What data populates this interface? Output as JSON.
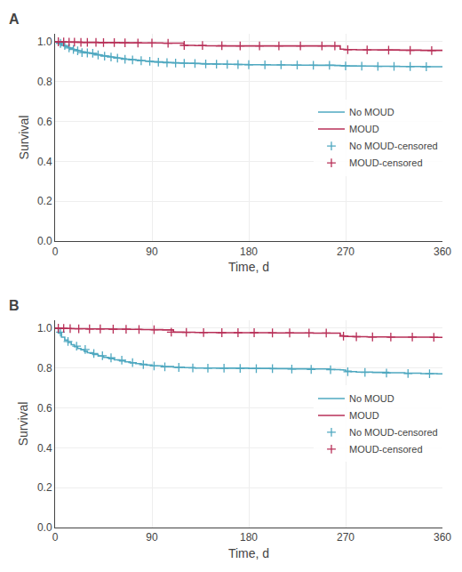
{
  "chart_data": [
    {
      "type": "line",
      "title": "A",
      "xlabel": "Time, d",
      "ylabel": "Survival",
      "xlim": [
        0,
        360
      ],
      "ylim": [
        0.0,
        1.04
      ],
      "xticks": [
        0,
        90,
        180,
        270,
        360
      ],
      "yticks": [
        {
          "value": 0.0,
          "label": "0.0"
        },
        0.2,
        0.4,
        0.6,
        0.8,
        {
          "value": 1.0,
          "label": "1.0"
        }
      ],
      "grid": true,
      "legend": "center right",
      "series": [
        {
          "name": "No MOUD",
          "color": "#4fa8c0",
          "type": "line",
          "line_style": "step",
          "x": [
            0,
            2,
            4,
            6,
            8,
            10,
            12,
            14,
            16,
            18,
            20,
            22,
            24,
            26,
            28,
            30,
            32,
            34,
            36,
            38,
            40,
            42,
            44,
            46,
            48,
            50,
            52,
            54,
            56,
            58,
            60,
            63,
            66,
            69,
            72,
            75,
            78,
            81,
            84,
            87,
            90,
            95,
            100,
            105,
            110,
            115,
            120,
            125,
            130,
            135,
            140,
            145,
            150,
            155,
            160,
            165,
            170,
            175,
            180,
            190,
            200,
            210,
            220,
            230,
            240,
            250,
            260,
            265,
            270,
            275,
            280,
            290,
            300,
            310,
            320,
            330,
            340,
            350,
            360
          ],
          "values": [
            1.0,
            0.994,
            0.989,
            0.984,
            0.979,
            0.975,
            0.971,
            0.967,
            0.963,
            0.96,
            0.957,
            0.954,
            0.951,
            0.949,
            0.947,
            0.945,
            0.943,
            0.941,
            0.939,
            0.937,
            0.935,
            0.933,
            0.931,
            0.929,
            0.928,
            0.926,
            0.924,
            0.922,
            0.921,
            0.919,
            0.917,
            0.915,
            0.913,
            0.911,
            0.91,
            0.908,
            0.906,
            0.905,
            0.903,
            0.902,
            0.9,
            0.899,
            0.897,
            0.896,
            0.895,
            0.894,
            0.893,
            0.892,
            0.891,
            0.89,
            0.889,
            0.889,
            0.888,
            0.888,
            0.887,
            0.887,
            0.886,
            0.886,
            0.885,
            0.885,
            0.884,
            0.884,
            0.883,
            0.883,
            0.882,
            0.882,
            0.881,
            0.88,
            0.879,
            0.879,
            0.878,
            0.878,
            0.877,
            0.877,
            0.876,
            0.876,
            0.875,
            0.875,
            0.874
          ]
        },
        {
          "name": "MOUD",
          "color": "#b83058",
          "type": "line",
          "line_style": "step",
          "x": [
            0,
            5,
            10,
            15,
            20,
            25,
            30,
            35,
            40,
            50,
            60,
            70,
            80,
            90,
            100,
            110,
            120,
            130,
            140,
            150,
            160,
            170,
            180,
            195,
            210,
            225,
            240,
            255,
            263,
            265,
            268,
            270,
            280,
            300,
            320,
            340,
            360
          ],
          "values": [
            1.0,
            0.9995,
            0.999,
            0.998,
            0.998,
            0.997,
            0.997,
            0.997,
            0.996,
            0.996,
            0.995,
            0.995,
            0.994,
            0.994,
            0.993,
            0.993,
            0.982,
            0.981,
            0.98,
            0.979,
            0.979,
            0.979,
            0.979,
            0.979,
            0.979,
            0.979,
            0.979,
            0.979,
            0.979,
            0.963,
            0.962,
            0.961,
            0.96,
            0.959,
            0.958,
            0.957,
            0.956
          ]
        },
        {
          "name": "No MOUD-censored",
          "color": "#4fa8c0",
          "type": "scatter",
          "marker": "plus",
          "x": [
            5,
            9,
            13,
            17,
            21,
            25,
            30,
            35,
            40,
            46,
            52,
            58,
            65,
            72,
            80,
            88,
            96,
            104,
            112,
            120,
            130,
            140,
            150,
            160,
            170,
            180,
            195,
            210,
            225,
            240,
            255,
            270,
            285,
            300,
            315,
            330,
            345
          ],
          "values": [
            0.992,
            0.981,
            0.969,
            0.961,
            0.955,
            0.946,
            0.944,
            0.942,
            0.934,
            0.928,
            0.923,
            0.918,
            0.912,
            0.909,
            0.905,
            0.902,
            0.898,
            0.895,
            0.893,
            0.892,
            0.891,
            0.889,
            0.888,
            0.887,
            0.886,
            0.885,
            0.884,
            0.884,
            0.883,
            0.882,
            0.882,
            0.879,
            0.878,
            0.877,
            0.877,
            0.876,
            0.875
          ]
        },
        {
          "name": "MOUD-censored",
          "color": "#b83058",
          "type": "scatter",
          "marker": "plus",
          "x": [
            3,
            8,
            13,
            18,
            24,
            30,
            38,
            45,
            55,
            65,
            77,
            90,
            105,
            120,
            137,
            155,
            172,
            190,
            208,
            228,
            248,
            260,
            272,
            290,
            310,
            330,
            350
          ],
          "values": [
            0.9998,
            0.9993,
            0.9985,
            0.9978,
            0.9972,
            0.997,
            0.997,
            0.996,
            0.996,
            0.995,
            0.994,
            0.994,
            0.993,
            0.982,
            0.981,
            0.98,
            0.979,
            0.979,
            0.979,
            0.979,
            0.979,
            0.979,
            0.96,
            0.959,
            0.958,
            0.957,
            0.956
          ]
        }
      ]
    },
    {
      "type": "line",
      "title": "B",
      "xlabel": "Time, d",
      "ylabel": "Survival",
      "xlim": [
        0,
        360
      ],
      "ylim": [
        0.0,
        1.04
      ],
      "xticks": [
        0,
        90,
        180,
        270,
        360
      ],
      "yticks": [
        {
          "value": 0.0,
          "label": "0.0"
        },
        0.2,
        0.4,
        0.6,
        0.8,
        {
          "value": 1.0,
          "label": "1.0"
        }
      ],
      "grid": true,
      "legend": "center right",
      "series": [
        {
          "name": "No MOUD",
          "color": "#4fa8c0",
          "type": "line",
          "line_style": "step",
          "x": [
            0,
            3,
            6,
            9,
            12,
            15,
            18,
            21,
            24,
            27,
            30,
            35,
            40,
            45,
            50,
            55,
            60,
            65,
            70,
            75,
            80,
            85,
            90,
            100,
            110,
            120,
            130,
            140,
            150,
            160,
            170,
            180,
            200,
            220,
            240,
            255,
            260,
            265,
            268,
            270,
            275,
            280,
            295,
            310,
            325,
            340,
            355,
            360
          ],
          "values": [
            1.0,
            0.975,
            0.955,
            0.94,
            0.928,
            0.917,
            0.907,
            0.898,
            0.891,
            0.884,
            0.877,
            0.868,
            0.86,
            0.853,
            0.847,
            0.841,
            0.836,
            0.831,
            0.826,
            0.822,
            0.818,
            0.815,
            0.811,
            0.807,
            0.804,
            0.802,
            0.8,
            0.8,
            0.799,
            0.799,
            0.799,
            0.798,
            0.797,
            0.796,
            0.795,
            0.793,
            0.792,
            0.791,
            0.79,
            0.784,
            0.782,
            0.78,
            0.778,
            0.776,
            0.774,
            0.772,
            0.771,
            0.77
          ]
        },
        {
          "name": "MOUD",
          "color": "#b83058",
          "type": "line",
          "line_style": "step",
          "x": [
            0,
            5,
            10,
            15,
            20,
            30,
            40,
            50,
            60,
            70,
            80,
            90,
            100,
            110,
            120,
            130,
            140,
            150,
            160,
            170,
            180,
            200,
            220,
            240,
            258,
            262,
            265,
            268,
            272,
            278,
            290,
            310,
            330,
            350,
            360
          ],
          "values": [
            1.0,
            0.999,
            0.998,
            0.997,
            0.997,
            0.996,
            0.996,
            0.995,
            0.995,
            0.994,
            0.993,
            0.992,
            0.991,
            0.98,
            0.979,
            0.978,
            0.978,
            0.977,
            0.977,
            0.977,
            0.977,
            0.976,
            0.976,
            0.975,
            0.975,
            0.975,
            0.962,
            0.96,
            0.958,
            0.957,
            0.956,
            0.955,
            0.955,
            0.954,
            0.954
          ]
        },
        {
          "name": "No MOUD-censored",
          "color": "#4fa8c0",
          "type": "scatter",
          "marker": "plus",
          "x": [
            5,
            12,
            20,
            28,
            36,
            44,
            52,
            62,
            72,
            82,
            92,
            102,
            115,
            128,
            142,
            157,
            172,
            187,
            202,
            220,
            238,
            256,
            272,
            288,
            308,
            328,
            348
          ],
          "values": [
            0.98,
            0.933,
            0.91,
            0.893,
            0.873,
            0.862,
            0.851,
            0.839,
            0.827,
            0.817,
            0.81,
            0.806,
            0.803,
            0.8,
            0.799,
            0.799,
            0.798,
            0.797,
            0.797,
            0.795,
            0.793,
            0.791,
            0.781,
            0.778,
            0.775,
            0.772,
            0.771
          ]
        },
        {
          "name": "MOUD-censored",
          "color": "#b83058",
          "type": "scatter",
          "marker": "plus",
          "x": [
            3,
            8,
            14,
            22,
            32,
            42,
            54,
            66,
            78,
            92,
            108,
            122,
            138,
            155,
            170,
            185,
            202,
            218,
            236,
            252,
            268,
            280,
            295,
            312,
            332,
            352
          ],
          "values": [
            0.9995,
            0.9987,
            0.9975,
            0.997,
            0.996,
            0.996,
            0.995,
            0.994,
            0.993,
            0.992,
            0.98,
            0.979,
            0.978,
            0.977,
            0.977,
            0.977,
            0.976,
            0.976,
            0.975,
            0.975,
            0.96,
            0.957,
            0.956,
            0.955,
            0.955,
            0.954
          ]
        }
      ]
    }
  ]
}
